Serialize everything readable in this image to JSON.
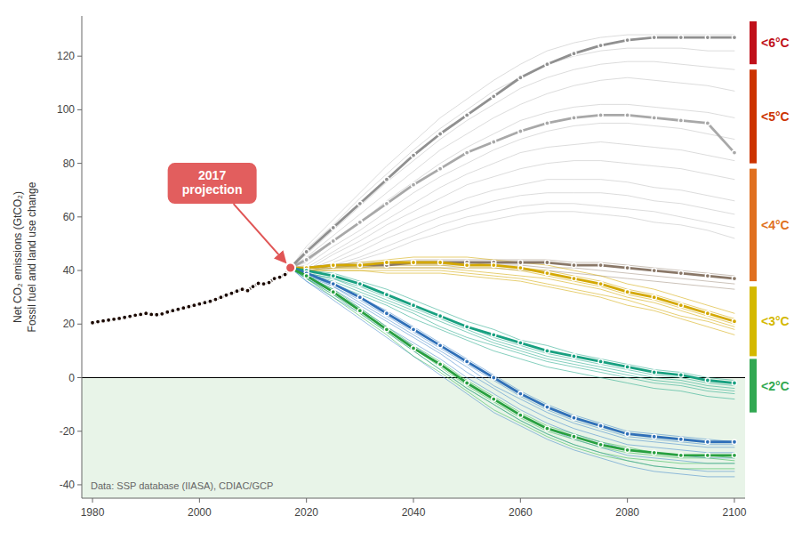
{
  "chart_data": {
    "type": "line",
    "ylabel": "Net CO₂ emissions (GtCO₂)\nFossil fuel and land use change",
    "xlim": [
      1978,
      2102
    ],
    "ylim": [
      -45,
      135
    ],
    "xticks": [
      1980,
      2000,
      2020,
      2040,
      2060,
      2080,
      2100
    ],
    "yticks": [
      -40,
      -20,
      0,
      20,
      40,
      60,
      80,
      100,
      120
    ],
    "grid": false,
    "regions": [
      {
        "y0": 0,
        "color": "#e8f4e8"
      }
    ],
    "annotations": [
      {
        "text": "2017\nprojection",
        "x": 2017,
        "y": 41,
        "color": "#e05555"
      },
      {
        "text": "Data: SSP database (IIASA), CDIAC/GCP"
      }
    ],
    "bands": [
      {
        "label": "<6°C",
        "color": "#c0101a",
        "ymin": 117,
        "ymax": 133
      },
      {
        "label": "<5°C",
        "color": "#cc3300",
        "ymin": 80,
        "ymax": 115
      },
      {
        "label": "<4°C",
        "color": "#e07020",
        "ymin": 36,
        "ymax": 78
      },
      {
        "label": "<3°C",
        "color": "#d4b800",
        "ymin": 8,
        "ymax": 34
      },
      {
        "label": "<2°C",
        "color": "#32a852",
        "ymin": -13,
        "ymax": 7
      }
    ],
    "x": [
      2017,
      2020,
      2025,
      2030,
      2035,
      2040,
      2045,
      2050,
      2055,
      2060,
      2065,
      2070,
      2075,
      2080,
      2085,
      2090,
      2095,
      2100
    ],
    "series": [
      {
        "color": "#c0c0c0",
        "values": [
          41,
          49,
          59,
          69,
          79,
          88,
          97,
          104,
          111,
          117,
          122,
          125,
          127,
          128,
          128,
          128,
          128,
          128
        ]
      },
      {
        "color": "#c0c0c0",
        "values": [
          41,
          48,
          57,
          67,
          76,
          85,
          93,
          100,
          107,
          112,
          117,
          120,
          122,
          123,
          123,
          123,
          122,
          122
        ]
      },
      {
        "color": "#c0c0c0",
        "values": [
          41,
          46,
          55,
          64,
          73,
          81,
          89,
          96,
          102,
          108,
          112,
          115,
          117,
          118,
          118,
          117,
          116,
          115
        ]
      },
      {
        "color": "#c0c0c0",
        "values": [
          41,
          45,
          53,
          61,
          69,
          77,
          85,
          91,
          97,
          102,
          106,
          109,
          111,
          112,
          111,
          110,
          109,
          107
        ]
      },
      {
        "color": "#c0c0c0",
        "values": [
          41,
          43,
          51,
          58,
          66,
          73,
          80,
          86,
          91,
          96,
          99,
          101,
          102,
          102,
          101,
          100,
          99,
          97
        ]
      },
      {
        "color": "#c0c0c0",
        "values": [
          41,
          42,
          49,
          55,
          62,
          69,
          75,
          80,
          85,
          89,
          92,
          94,
          95,
          95,
          94,
          93,
          91,
          89
        ]
      },
      {
        "color": "#c0c0c0",
        "values": [
          41,
          41,
          47,
          53,
          59,
          65,
          71,
          76,
          80,
          84,
          86,
          87,
          88,
          87,
          86,
          85,
          83,
          81
        ]
      },
      {
        "color": "#c0c0c0",
        "values": [
          41,
          40,
          46,
          51,
          57,
          62,
          67,
          72,
          75,
          78,
          80,
          81,
          81,
          80,
          79,
          78,
          76,
          74
        ]
      },
      {
        "color": "#c0c0c0",
        "values": [
          41,
          40,
          44,
          49,
          54,
          59,
          63,
          67,
          70,
          72,
          74,
          74,
          74,
          73,
          71,
          70,
          68,
          66
        ]
      },
      {
        "color": "#c0c0c0",
        "values": [
          41,
          39,
          43,
          47,
          52,
          56,
          60,
          63,
          66,
          68,
          69,
          69,
          69,
          68,
          66,
          65,
          63,
          61
        ]
      },
      {
        "color": "#c0c0c0",
        "values": [
          41,
          39,
          42,
          45,
          49,
          53,
          57,
          60,
          62,
          64,
          65,
          65,
          64,
          63,
          62,
          60,
          58,
          56
        ]
      },
      {
        "color": "#c0c0c0",
        "values": [
          41,
          38,
          41,
          44,
          47,
          51,
          54,
          57,
          59,
          61,
          62,
          62,
          61,
          60,
          58,
          57,
          55,
          52
        ]
      },
      {
        "color": "#909090",
        "marker": "circle",
        "values": [
          41,
          47,
          56,
          65,
          74,
          83,
          91,
          98,
          105,
          112,
          117,
          121,
          124,
          126,
          127,
          127,
          127,
          127
        ]
      },
      {
        "color": "#a8a8a8",
        "marker": "circle",
        "values": [
          41,
          44,
          51,
          58,
          65,
          72,
          78,
          84,
          88,
          92,
          95,
          97,
          98,
          98,
          97,
          96,
          95,
          84
        ]
      },
      {
        "color": "#a09080",
        "values": [
          41,
          41,
          42,
          43,
          43,
          44,
          44,
          44,
          44,
          44,
          44,
          43,
          43,
          42,
          41,
          40,
          39,
          38
        ]
      },
      {
        "color": "#a09080",
        "values": [
          41,
          41,
          41,
          42,
          42,
          42,
          42,
          42,
          42,
          42,
          41,
          41,
          40,
          39,
          38,
          37,
          36,
          35
        ]
      },
      {
        "color": "#a09080",
        "values": [
          41,
          40,
          41,
          41,
          41,
          41,
          41,
          41,
          41,
          40,
          40,
          39,
          38,
          37,
          36,
          35,
          34,
          33
        ]
      },
      {
        "color": "#8a7868",
        "marker": "circle",
        "values": [
          41,
          41,
          42,
          42,
          42,
          43,
          43,
          43,
          43,
          43,
          43,
          42,
          42,
          41,
          40,
          39,
          38,
          37
        ]
      },
      {
        "color": "#d4a800",
        "values": [
          41,
          41,
          42,
          43,
          44,
          45,
          45,
          45,
          44,
          43,
          42,
          40,
          38,
          35,
          33,
          30,
          27,
          24
        ]
      },
      {
        "color": "#d4a800",
        "values": [
          41,
          41,
          42,
          42,
          43,
          43,
          43,
          43,
          42,
          41,
          40,
          38,
          36,
          33,
          31,
          28,
          25,
          22
        ]
      },
      {
        "color": "#d4a800",
        "values": [
          41,
          41,
          41,
          41,
          42,
          42,
          42,
          41,
          41,
          40,
          38,
          36,
          34,
          31,
          29,
          26,
          23,
          20
        ]
      },
      {
        "color": "#d4a800",
        "values": [
          41,
          40,
          41,
          41,
          41,
          41,
          41,
          40,
          39,
          38,
          37,
          35,
          33,
          30,
          28,
          25,
          22,
          19
        ]
      },
      {
        "color": "#d4a800",
        "values": [
          41,
          40,
          40,
          40,
          40,
          40,
          40,
          39,
          38,
          37,
          35,
          33,
          31,
          29,
          26,
          23,
          21,
          18
        ]
      },
      {
        "color": "#d4a800",
        "values": [
          41,
          40,
          40,
          40,
          39,
          39,
          39,
          38,
          37,
          36,
          34,
          32,
          30,
          27,
          25,
          22,
          19,
          16
        ]
      },
      {
        "color": "#d4a800",
        "marker": "circle",
        "values": [
          41,
          41,
          42,
          42,
          43,
          43,
          43,
          42,
          42,
          41,
          39,
          37,
          35,
          32,
          30,
          27,
          24,
          21
        ]
      },
      {
        "color": "#20a888",
        "values": [
          41,
          40,
          39,
          36,
          33,
          29,
          25,
          21,
          18,
          14,
          12,
          9,
          7,
          5,
          3,
          2,
          0,
          -1
        ]
      },
      {
        "color": "#20a888",
        "values": [
          41,
          40,
          38,
          35,
          31,
          27,
          23,
          19,
          15,
          12,
          9,
          7,
          5,
          3,
          1,
          0,
          -2,
          -3
        ]
      },
      {
        "color": "#20a888",
        "values": [
          41,
          39,
          37,
          34,
          30,
          26,
          22,
          18,
          14,
          11,
          8,
          6,
          4,
          2,
          0,
          -1,
          -3,
          -4
        ]
      },
      {
        "color": "#20a888",
        "values": [
          41,
          39,
          37,
          33,
          29,
          25,
          21,
          17,
          13,
          10,
          7,
          5,
          3,
          1,
          -1,
          -2,
          -4,
          -5
        ]
      },
      {
        "color": "#20a888",
        "values": [
          41,
          39,
          36,
          32,
          28,
          24,
          19,
          15,
          12,
          9,
          6,
          4,
          2,
          0,
          -2,
          -3,
          -5,
          -6
        ]
      },
      {
        "color": "#20a888",
        "values": [
          41,
          38,
          35,
          31,
          27,
          22,
          18,
          14,
          10,
          7,
          4,
          2,
          0,
          -2,
          -4,
          -5,
          -7,
          -8
        ]
      },
      {
        "color": "#18a080",
        "marker": "circle",
        "values": [
          41,
          40,
          38,
          35,
          31,
          27,
          23,
          19,
          16,
          13,
          10,
          8,
          6,
          4,
          2,
          1,
          -1,
          -2
        ]
      },
      {
        "color": "#4488cc",
        "values": [
          41,
          39,
          35,
          30,
          25,
          19,
          13,
          7,
          1,
          -5,
          -10,
          -14,
          -17,
          -20,
          -21,
          -22,
          -23,
          -24
        ]
      },
      {
        "color": "#4488cc",
        "values": [
          41,
          39,
          34,
          29,
          23,
          17,
          11,
          5,
          -1,
          -7,
          -12,
          -16,
          -19,
          -22,
          -23,
          -24,
          -25,
          -25
        ]
      },
      {
        "color": "#4488cc",
        "values": [
          41,
          38,
          34,
          28,
          22,
          16,
          10,
          4,
          -3,
          -8,
          -13,
          -17,
          -20,
          -23,
          -24,
          -25,
          -26,
          -26
        ]
      },
      {
        "color": "#4488cc",
        "values": [
          41,
          38,
          33,
          27,
          21,
          15,
          9,
          2,
          -4,
          -10,
          -15,
          -19,
          -22,
          -25,
          -26,
          -27,
          -28,
          -28
        ]
      },
      {
        "color": "#4488cc",
        "values": [
          41,
          37,
          32,
          26,
          19,
          13,
          7,
          0,
          -6,
          -12,
          -17,
          -21,
          -24,
          -27,
          -28,
          -29,
          -30,
          -30
        ]
      },
      {
        "color": "#4488cc",
        "values": [
          41,
          37,
          31,
          25,
          18,
          12,
          5,
          -2,
          -8,
          -14,
          -19,
          -23,
          -26,
          -29,
          -30,
          -31,
          -32,
          -32
        ]
      },
      {
        "color": "#4488cc",
        "values": [
          41,
          36,
          30,
          24,
          17,
          10,
          3,
          -4,
          -10,
          -16,
          -21,
          -25,
          -28,
          -31,
          -33,
          -34,
          -35,
          -35
        ]
      },
      {
        "color": "#4488cc",
        "values": [
          41,
          36,
          29,
          22,
          15,
          8,
          1,
          -6,
          -13,
          -18,
          -23,
          -27,
          -30,
          -33,
          -35,
          -36,
          -37,
          -37
        ]
      },
      {
        "color": "#3070b8",
        "marker": "circle",
        "values": [
          41,
          39,
          35,
          30,
          24,
          18,
          12,
          6,
          0,
          -6,
          -11,
          -15,
          -18,
          -21,
          -22,
          -23,
          -24,
          -24
        ]
      },
      {
        "color": "#30b850",
        "values": [
          41,
          38,
          33,
          26,
          19,
          12,
          6,
          -1,
          -7,
          -13,
          -18,
          -21,
          -24,
          -26,
          -28,
          -29,
          -29,
          -30
        ]
      },
      {
        "color": "#30b850",
        "values": [
          41,
          38,
          32,
          25,
          18,
          11,
          4,
          -3,
          -9,
          -15,
          -20,
          -23,
          -26,
          -28,
          -29,
          -30,
          -30,
          -31
        ]
      },
      {
        "color": "#30b850",
        "values": [
          41,
          37,
          31,
          24,
          17,
          10,
          3,
          -4,
          -10,
          -16,
          -21,
          -25,
          -28,
          -30,
          -31,
          -32,
          -32,
          -32
        ]
      },
      {
        "color": "#30b850",
        "values": [
          41,
          37,
          30,
          23,
          16,
          8,
          2,
          -5,
          -12,
          -17,
          -22,
          -26,
          -29,
          -31,
          -33,
          -34,
          -34,
          -34
        ]
      },
      {
        "color": "#28a040",
        "marker": "circle",
        "values": [
          41,
          38,
          32,
          25,
          18,
          11,
          5,
          -2,
          -8,
          -14,
          -19,
          -22,
          -25,
          -27,
          -28,
          -29,
          -29,
          -29
        ]
      },
      {
        "color": "#1a0800",
        "marker": "circle",
        "x": [
          1980,
          1981,
          1982,
          1983,
          1984,
          1985,
          1986,
          1987,
          1988,
          1989,
          1990,
          1991,
          1992,
          1993,
          1994,
          1995,
          1996,
          1997,
          1998,
          1999,
          2000,
          2001,
          2002,
          2003,
          2004,
          2005,
          2006,
          2007,
          2008,
          2009,
          2010,
          2011,
          2012,
          2013,
          2014,
          2015,
          2016,
          2017
        ],
        "values": [
          20.5,
          20.9,
          21.2,
          21.5,
          21.8,
          22.1,
          22.5,
          22.9,
          23.3,
          23.6,
          24.0,
          23.6,
          23.5,
          23.8,
          24.5,
          25.0,
          25.5,
          26.0,
          26.5,
          27.0,
          27.5,
          28.0,
          28.5,
          29.2,
          30.0,
          30.8,
          31.5,
          32.3,
          33.0,
          32.5,
          34.0,
          35.2,
          35.0,
          35.5,
          37.0,
          37.5,
          38.5,
          41.0
        ]
      }
    ]
  }
}
